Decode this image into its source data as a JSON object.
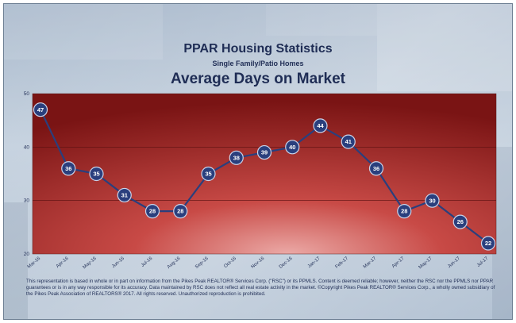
{
  "title": "PPAR Housing Statistics",
  "subtitle": "Single Family/Patio Homes",
  "heading": "Average Days on Market",
  "disclaimer": "This representation is based in whole or in part on information from the Pikes Peak REALTOR® Services Corp. (\"RSC\") or its PPMLS. Content is deemed reliable; however, neither the RSC nor the PPMLS nor PPAR guarantees or is in any way responsible for its accuracy. Data maintained by RSC does not reflect all real estate activity in the market. ©Copyright Pikes Peak REALTOR® Services Corp., a wholly owned subsidiary of the Pikes Peak Association of REALTORS® 2017. All rights reserved. Unauthorized reproduction is prohibited.",
  "colors": {
    "plot_center": "#e9a3a0",
    "plot_edge": "#7a1414",
    "line": "#2a3f7d",
    "marker": "#2a3f7d",
    "marker_text": "#ffffff"
  },
  "chart_data": {
    "type": "line",
    "categories": [
      "Mar-16",
      "Apr-16",
      "May-16",
      "Jun-16",
      "Jul-16",
      "Aug-16",
      "Sep-16",
      "Oct-16",
      "Nov-16",
      "Dec-16",
      "Jan-17",
      "Feb-17",
      "Mar-17",
      "Apr-17",
      "May-17",
      "Jun-17",
      "Jul-17"
    ],
    "values": [
      47,
      36,
      35,
      31,
      28,
      28,
      35,
      38,
      39,
      40,
      44,
      41,
      36,
      28,
      30,
      26,
      22
    ],
    "data_labels": [
      "47",
      "36",
      "35",
      "31",
      "28",
      "28",
      "35",
      "38",
      "39",
      "40",
      "44",
      "41",
      "36",
      "28",
      "30",
      "26",
      "22"
    ],
    "yticks": [
      "20",
      "30",
      "40",
      "50"
    ],
    "ylim": [
      20,
      50
    ],
    "grid": true,
    "title": "Average Days on Market",
    "xlabel": "",
    "ylabel": ""
  }
}
